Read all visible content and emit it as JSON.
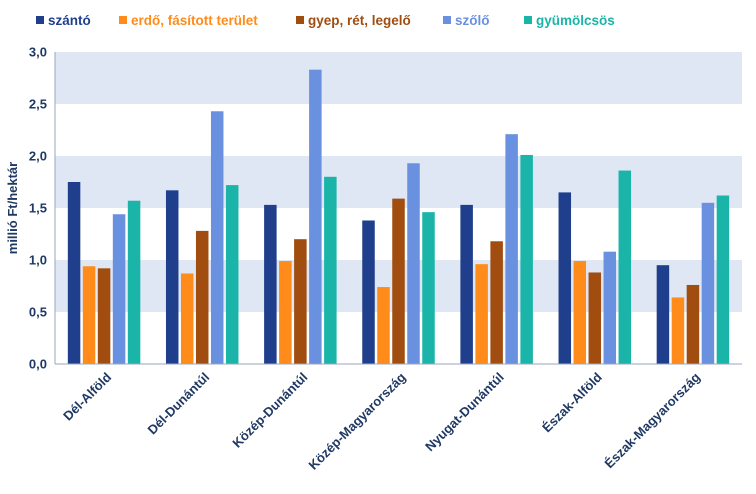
{
  "chart_data": {
    "type": "bar",
    "ylabel": "millió Ft/hektár",
    "xlabel": "",
    "ylim": [
      0,
      3
    ],
    "yticks": [
      "0,0",
      "0,5",
      "1,0",
      "1,5",
      "2,0",
      "2,5",
      "3,0"
    ],
    "grid": "horizontal bands",
    "legend_position": "top",
    "categories": [
      "Dél-Alföld",
      "Dél-Dunántúl",
      "Közép-Dunántúl",
      "Közép-Magyarország",
      "Nyugat-Dunántúl",
      "Észak-Alföld",
      "Észak-Magyarország"
    ],
    "series": [
      {
        "name": "szántó",
        "color": "#1f3f8c",
        "values": [
          1.75,
          1.67,
          1.53,
          1.38,
          1.53,
          1.65,
          0.95
        ]
      },
      {
        "name": "erdő, fásított terület",
        "color": "#ff8c1a",
        "values": [
          0.94,
          0.87,
          0.99,
          0.74,
          0.96,
          0.99,
          0.64
        ]
      },
      {
        "name": "gyep, rét, legelő",
        "color": "#a04d0f",
        "values": [
          0.92,
          1.28,
          1.2,
          1.59,
          1.18,
          0.88,
          0.76
        ]
      },
      {
        "name": "szőlő",
        "color": "#6a90e0",
        "values": [
          1.44,
          2.43,
          2.83,
          1.93,
          2.21,
          1.08,
          1.55
        ]
      },
      {
        "name": "gyümölcsös",
        "color": "#1ab5a8",
        "values": [
          1.57,
          1.72,
          1.8,
          1.46,
          2.01,
          1.86,
          1.62
        ]
      }
    ],
    "band_colors": [
      "#dfe6f4",
      "#ffffff"
    ]
  }
}
